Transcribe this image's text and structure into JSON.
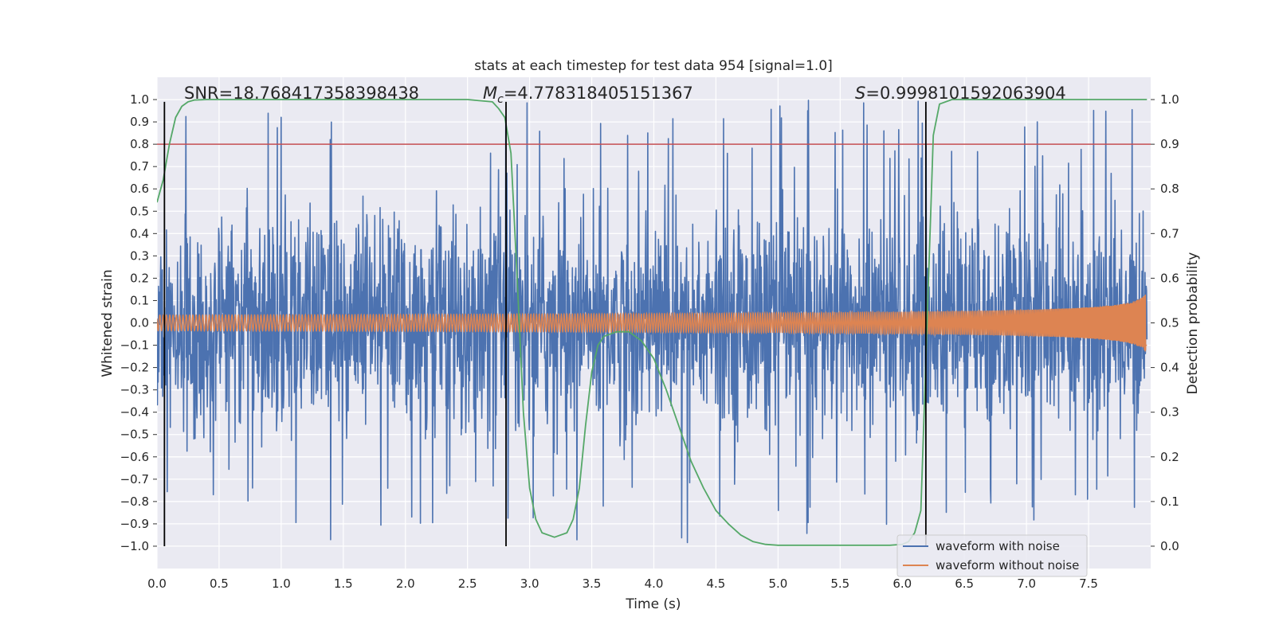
{
  "chart_data": {
    "type": "line",
    "title": "stats at each timestep for test data 954 [signal=1.0]",
    "xlabel": "Time (s)",
    "ylabel_left": "Whitened strain",
    "ylabel_right": "Detection probability",
    "xlim": [
      0.0,
      8.0
    ],
    "ylim_left": [
      -1.1,
      1.1
    ],
    "ylim_right": [
      -0.05,
      1.05
    ],
    "x_ticks": [
      0.0,
      0.5,
      1.0,
      1.5,
      2.0,
      2.5,
      3.0,
      3.5,
      4.0,
      4.5,
      5.0,
      5.5,
      6.0,
      6.5,
      7.0,
      7.5
    ],
    "x_tick_labels": [
      "0.0",
      "0.5",
      "1.0",
      "1.5",
      "2.0",
      "2.5",
      "3.0",
      "3.5",
      "4.0",
      "4.5",
      "5.0",
      "5.5",
      "6.0",
      "6.5",
      "7.0",
      "7.5"
    ],
    "y_left_ticks": [
      1.0,
      0.9,
      0.8,
      0.7,
      0.6,
      0.5,
      0.4,
      0.3,
      0.2,
      0.1,
      0.0,
      -0.1,
      -0.2,
      -0.3,
      -0.4,
      -0.5,
      -0.6,
      -0.7,
      -0.8,
      -0.9,
      -1.0
    ],
    "y_left_tick_labels": [
      "1.0",
      "0.9",
      "0.8",
      "0.7",
      "0.6",
      "0.5",
      "0.4",
      "0.3",
      "0.2",
      "0.1",
      "0.0",
      "−0.1",
      "−0.2",
      "−0.3",
      "−0.4",
      "−0.5",
      "−0.6",
      "−0.7",
      "−0.8",
      "−0.9",
      "−1.0"
    ],
    "y_right_ticks": [
      1.0,
      0.9,
      0.8,
      0.7,
      0.6,
      0.5,
      0.4,
      0.3,
      0.2,
      0.1,
      0.0
    ],
    "y_right_tick_labels": [
      "1.0",
      "0.9",
      "0.8",
      "0.7",
      "0.6",
      "0.5",
      "0.4",
      "0.3",
      "0.2",
      "0.1",
      "0.0"
    ],
    "annotations": {
      "snr": "SNR=18.768417358398438",
      "mc_symbol": "M",
      "mc_sub": "c",
      "mc_value": "=4.778318405151367",
      "s_symbol": "S",
      "s_value": "=0.9998101592063904"
    },
    "vertical_lines_x": [
      0.06,
      2.81,
      6.19
    ],
    "threshold_line_right": 0.9,
    "series": [
      {
        "name": "waveform with noise",
        "color": "#4c72b0",
        "kind": "noise",
        "typical_amplitude": 0.55,
        "peak_amplitude": 1.0
      },
      {
        "name": "waveform without noise",
        "color": "#dd8452",
        "kind": "chirp",
        "amplitude_start": 0.035,
        "amplitude_end": 0.55
      },
      {
        "name": "detection probability",
        "color": "#55a868",
        "axis": "right",
        "x": [
          0.0,
          0.05,
          0.1,
          0.15,
          0.2,
          0.25,
          0.3,
          0.4,
          0.5,
          1.0,
          2.0,
          2.5,
          2.7,
          2.75,
          2.8,
          2.85,
          2.9,
          2.95,
          3.0,
          3.05,
          3.1,
          3.2,
          3.3,
          3.35,
          3.4,
          3.45,
          3.5,
          3.55,
          3.6,
          3.7,
          3.8,
          3.9,
          4.0,
          4.1,
          4.2,
          4.3,
          4.4,
          4.5,
          4.6,
          4.7,
          4.8,
          4.9,
          5.0,
          5.5,
          5.9,
          6.0,
          6.05,
          6.1,
          6.15,
          6.2,
          6.25,
          6.3,
          6.4,
          7.0,
          7.97
        ],
        "values": [
          0.77,
          0.82,
          0.9,
          0.96,
          0.985,
          0.995,
          0.999,
          1.0,
          1.0,
          1.0,
          1.0,
          1.0,
          0.995,
          0.98,
          0.96,
          0.88,
          0.6,
          0.3,
          0.13,
          0.06,
          0.03,
          0.02,
          0.03,
          0.06,
          0.13,
          0.27,
          0.39,
          0.45,
          0.47,
          0.48,
          0.48,
          0.46,
          0.42,
          0.35,
          0.27,
          0.19,
          0.13,
          0.08,
          0.05,
          0.025,
          0.01,
          0.004,
          0.002,
          0.002,
          0.002,
          0.004,
          0.01,
          0.03,
          0.08,
          0.5,
          0.92,
          0.99,
          1.0,
          1.0,
          1.0
        ]
      },
      {
        "name": "threshold",
        "color": "#c44e52",
        "axis": "right",
        "value": 0.9
      }
    ],
    "legend": {
      "position": "bottom-right",
      "entries": [
        {
          "label": "waveform with noise",
          "color": "#4c72b0"
        },
        {
          "label": "waveform without noise",
          "color": "#dd8452"
        }
      ]
    },
    "grid": true
  }
}
